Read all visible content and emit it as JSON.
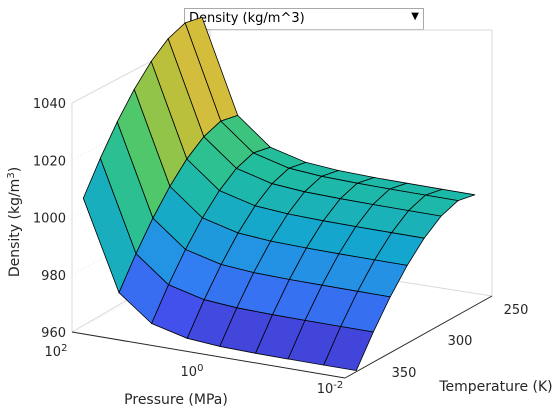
{
  "dropdown": {
    "selected": "Density (kg/m^3)",
    "arrow_icon": "triangle-down-icon"
  },
  "chart_data": {
    "type": "surface",
    "zlabel": "Density (kg/m",
    "zlabel_unit_exp": "3",
    "zlabel_suffix": ")",
    "xlabel": "Pressure (MPa)",
    "ylabel": "Temperature (K)",
    "z_ticks": [
      "1040",
      "1020",
      "1000",
      "980",
      "960"
    ],
    "pressure_ticks": [
      {
        "base": "10",
        "exp": "2"
      },
      {
        "base": "10",
        "exp": "0"
      },
      {
        "base": "10",
        "exp": "-2"
      }
    ],
    "temperature_ticks": [
      "250",
      "300",
      "350"
    ],
    "pressure_MPa": [
      100,
      30,
      10,
      3,
      1,
      0.3,
      0.1,
      0.03,
      0.01
    ],
    "temperature_K": [
      265,
      280,
      295,
      310,
      325,
      340,
      355,
      370
    ],
    "z_range": [
      958,
      1044
    ],
    "colormap": [
      "#3e26a8",
      "#4353ef",
      "#2d85f2",
      "#15a6cf",
      "#1fbca1",
      "#48c770",
      "#a8c33c",
      "#f0b93c",
      "#fadf2b"
    ],
    "grid": true
  }
}
